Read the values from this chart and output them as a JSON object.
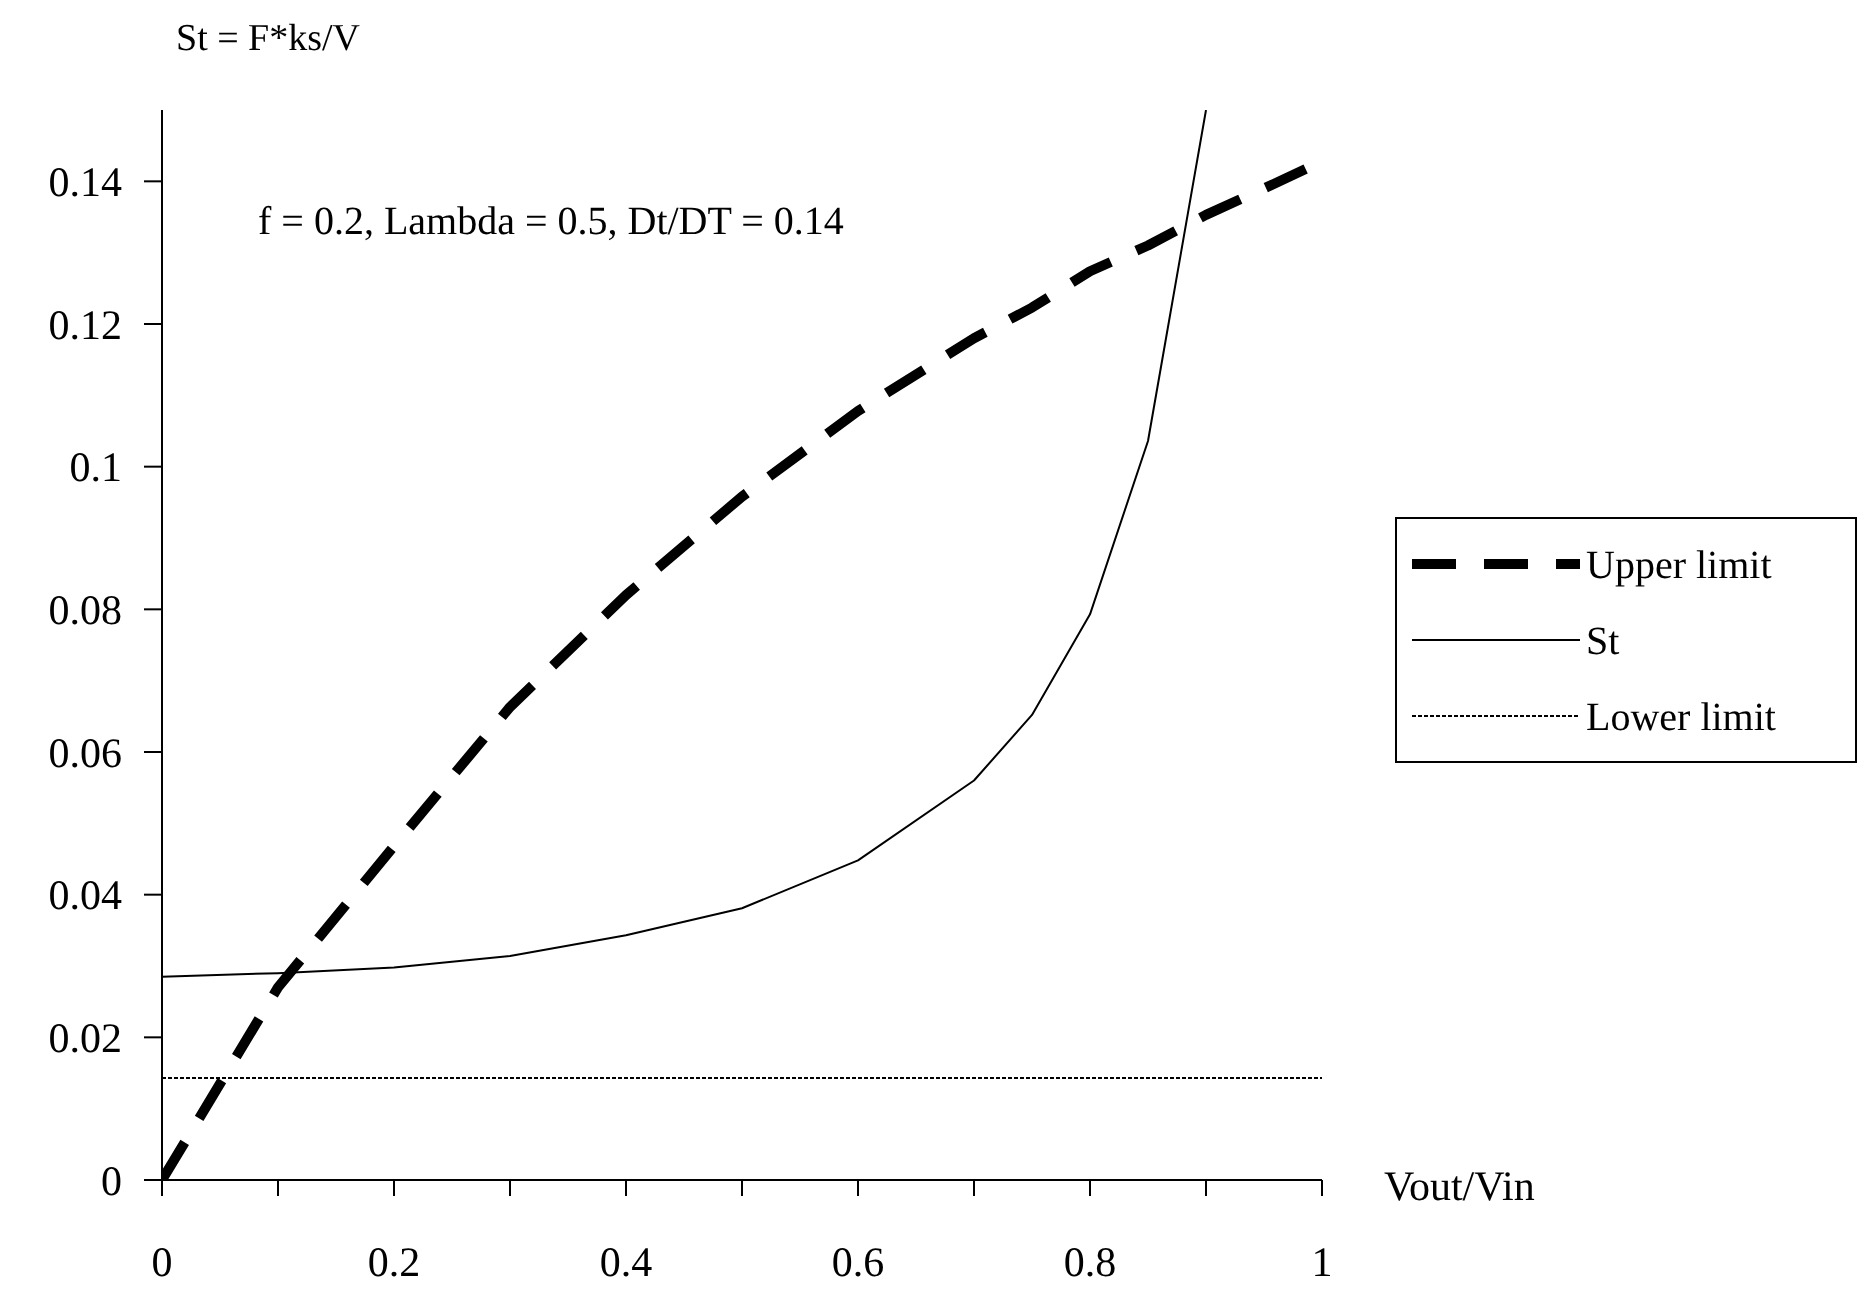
{
  "chart_data": {
    "type": "line",
    "ylabel": "St = F*ks/V",
    "xlabel": "Vout/Vin",
    "annotations": [
      "f = 0.2, Lambda = 0.5, Dt/DT = 0.14"
    ],
    "xlim": [
      0,
      1
    ],
    "ylim": [
      0,
      0.15
    ],
    "xticks": [
      0,
      {
        "value": 0.1,
        "label": null
      },
      0.2,
      {
        "value": 0.3,
        "label": null
      },
      0.4,
      {
        "value": 0.5,
        "label": null
      },
      0.6,
      {
        "value": 0.7,
        "label": null
      },
      0.8,
      {
        "value": 0.9,
        "label": null
      },
      1
    ],
    "yticks": [
      0,
      0.02,
      0.04,
      0.06,
      0.08,
      0.1,
      0.12,
      0.14
    ],
    "grid": false,
    "legend": "right",
    "series": [
      {
        "name": "Upper limit",
        "color": "#000000",
        "line_style": "dashed",
        "x": [
          0,
          0.1,
          0.2,
          0.3,
          0.4,
          0.5,
          0.6,
          0.7,
          0.75,
          0.8,
          0.85,
          0.9,
          0.95,
          1
        ],
        "values": [
          0,
          0.027,
          0.0468,
          0.0663,
          0.082,
          0.0958,
          0.1078,
          0.118,
          0.1223,
          0.1274,
          0.131,
          0.1353,
          0.139,
          0.1428
        ]
      },
      {
        "name": "St",
        "color": "#000000",
        "line_style": "solid",
        "x": [
          0,
          0.1,
          0.2,
          0.3,
          0.4,
          0.5,
          0.6,
          0.7,
          0.75,
          0.8,
          0.85,
          0.9
        ],
        "values": [
          0.0285,
          0.029,
          0.0298,
          0.0314,
          0.0343,
          0.0381,
          0.0448,
          0.056,
          0.0652,
          0.0793,
          0.1036,
          0.15
        ]
      },
      {
        "name": "Lower limit",
        "color": "#000000",
        "line_style": "dotted",
        "x": [
          0,
          1
        ],
        "values": [
          0.0143,
          0.0143
        ]
      }
    ]
  }
}
